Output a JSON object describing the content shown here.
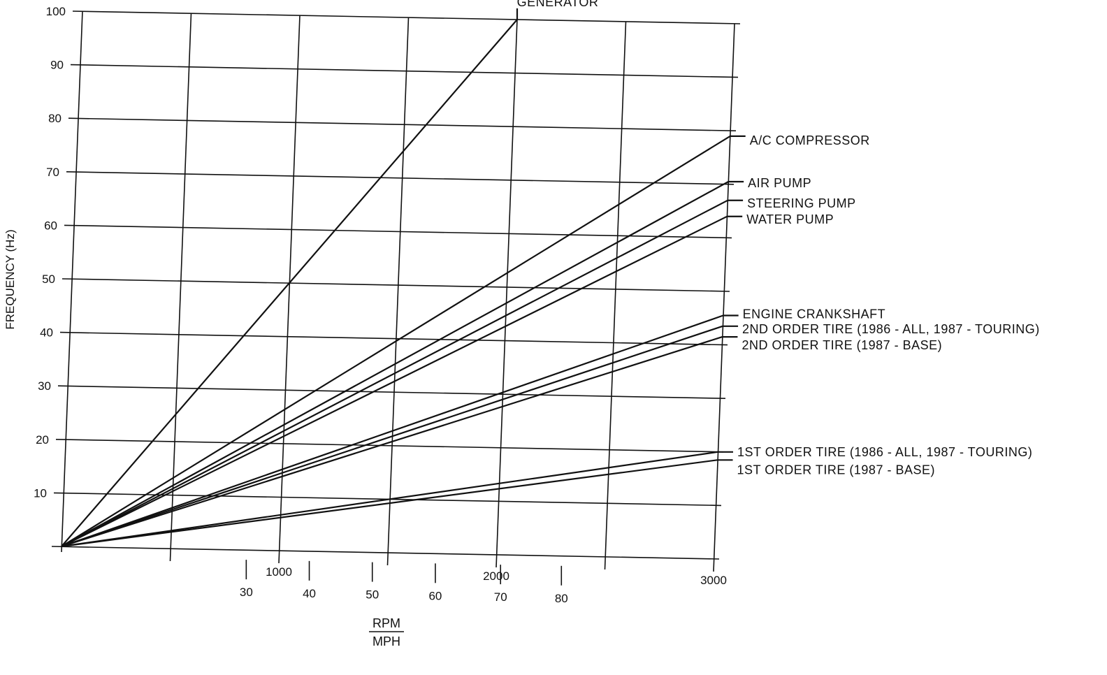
{
  "chart_data": {
    "type": "line",
    "title": "",
    "ylabel": "FREQUENCY (Hz)",
    "xlabel_rpm": "RPM",
    "xlabel_mph": "MPH",
    "ylim": [
      0,
      100
    ],
    "xlim_rpm": [
      0,
      3000
    ],
    "grid": true,
    "y_ticks": [
      "100",
      "90",
      "80",
      "70",
      "60",
      "50",
      "40",
      "30",
      "20",
      "10"
    ],
    "rpm_ticks": [
      {
        "value": 1000,
        "label": "1000"
      },
      {
        "value": 2000,
        "label": "2000"
      },
      {
        "value": 3000,
        "label": "3000"
      }
    ],
    "mph_ticks": [
      {
        "rpm": 850,
        "label": "30"
      },
      {
        "rpm": 1140,
        "label": "40"
      },
      {
        "rpm": 1430,
        "label": "50"
      },
      {
        "rpm": 1720,
        "label": "60"
      },
      {
        "rpm": 2020,
        "label": "70"
      },
      {
        "rpm": 2300,
        "label": "80"
      }
    ],
    "series": [
      {
        "name": "GENERATOR",
        "x": [
          0,
          2000
        ],
        "y": [
          0,
          100
        ],
        "label_position": "top"
      },
      {
        "name": "A/C COMPRESSOR",
        "x": [
          0,
          3000
        ],
        "y": [
          0,
          79
        ]
      },
      {
        "name": "AIR PUMP",
        "x": [
          0,
          3000
        ],
        "y": [
          0,
          70.5
        ]
      },
      {
        "name": "STEERING PUMP",
        "x": [
          0,
          3000
        ],
        "y": [
          0,
          67
        ]
      },
      {
        "name": "WATER PUMP",
        "x": [
          0,
          3000
        ],
        "y": [
          0,
          64
        ]
      },
      {
        "name": "ENGINE CRANKSHAFT",
        "x": [
          0,
          3000
        ],
        "y": [
          0,
          45.5
        ]
      },
      {
        "name": "2ND ORDER TIRE (1986 - ALL, 1987 - TOURING)",
        "x": [
          0,
          3000
        ],
        "y": [
          0,
          43.5
        ]
      },
      {
        "name": "2ND ORDER TIRE (1987 - BASE)",
        "x": [
          0,
          3000
        ],
        "y": [
          0,
          41.5
        ]
      },
      {
        "name": "1ST ORDER TIRE (1986 - ALL, 1987 - TOURING)",
        "x": [
          0,
          3000
        ],
        "y": [
          0,
          20
        ]
      },
      {
        "name": "1ST ORDER TIRE (1987 - BASE)",
        "x": [
          0,
          3000
        ],
        "y": [
          0,
          18.5
        ]
      }
    ]
  }
}
